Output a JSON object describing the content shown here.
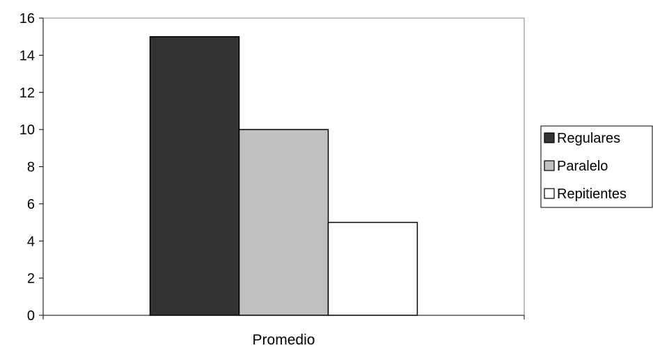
{
  "chart_data": {
    "type": "bar",
    "categories": [
      "Promedio"
    ],
    "series": [
      {
        "name": "Regulares",
        "values": [
          15
        ],
        "color": "#333333"
      },
      {
        "name": "Paralelo",
        "values": [
          10
        ],
        "color": "#c0c0c0"
      },
      {
        "name": "Repitientes",
        "values": [
          5
        ],
        "color": "#ffffff"
      }
    ],
    "ylim": [
      0,
      16
    ],
    "yticks": [
      0,
      2,
      4,
      6,
      8,
      10,
      12,
      14,
      16
    ],
    "grid": false,
    "legend": "right"
  }
}
